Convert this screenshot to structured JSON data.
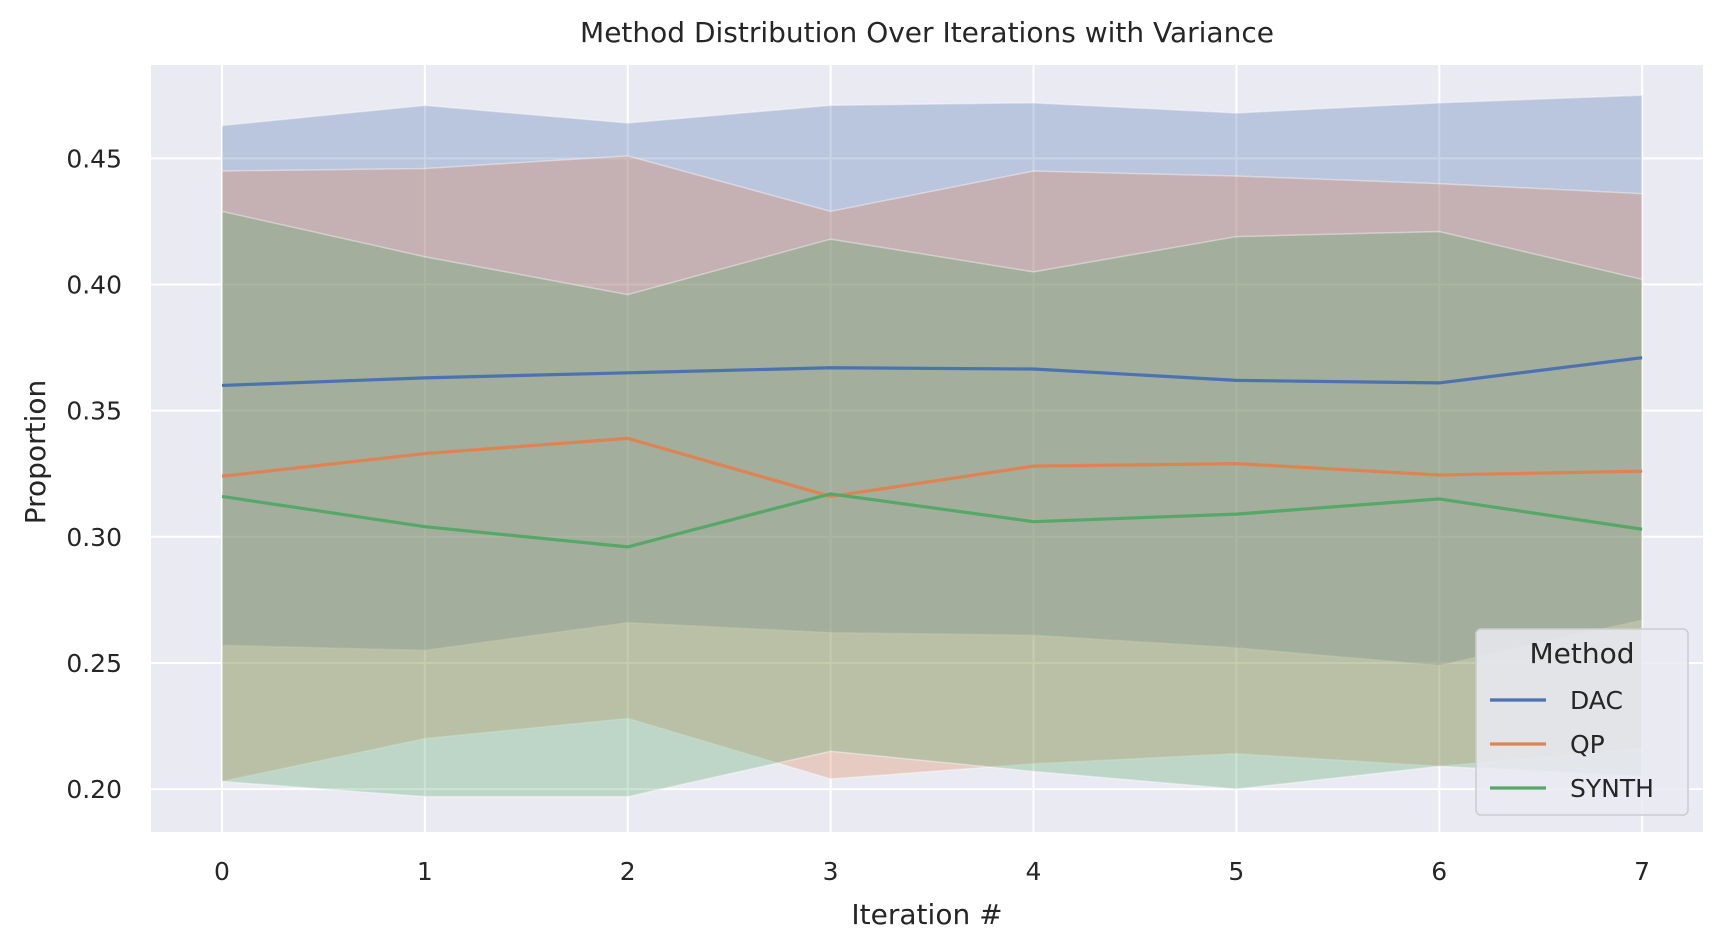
{
  "chart_data": {
    "type": "line",
    "title": "Method Distribution Over Iterations with Variance",
    "xlabel": "Iteration #",
    "ylabel": "Proportion",
    "x": [
      0,
      1,
      2,
      3,
      4,
      5,
      6,
      7
    ],
    "xlim": [
      -0.35,
      7.3
    ],
    "ylim": [
      0.183,
      0.487
    ],
    "yticks": [
      0.2,
      0.25,
      0.3,
      0.35,
      0.4,
      0.45
    ],
    "ytick_labels": [
      "0.20",
      "0.25",
      "0.30",
      "0.35",
      "0.40",
      "0.45"
    ],
    "xtick_labels": [
      "0",
      "1",
      "2",
      "3",
      "4",
      "5",
      "6",
      "7"
    ],
    "grid": true,
    "legend": {
      "title": "Method",
      "placement": "lower-right"
    },
    "series": [
      {
        "name": "DAC",
        "color": "#4c72b0",
        "values": [
          0.36,
          0.363,
          0.365,
          0.367,
          0.3665,
          0.362,
          0.361,
          0.371
        ],
        "upper": [
          0.463,
          0.471,
          0.464,
          0.471,
          0.472,
          0.468,
          0.472,
          0.475
        ],
        "lower": [
          0.257,
          0.255,
          0.266,
          0.262,
          0.261,
          0.256,
          0.249,
          0.267
        ]
      },
      {
        "name": "QP",
        "color": "#dd8452",
        "values": [
          0.324,
          0.333,
          0.339,
          0.316,
          0.328,
          0.329,
          0.3245,
          0.326
        ],
        "upper": [
          0.445,
          0.446,
          0.451,
          0.429,
          0.445,
          0.443,
          0.44,
          0.436
        ],
        "lower": [
          0.203,
          0.22,
          0.228,
          0.204,
          0.21,
          0.214,
          0.209,
          0.216
        ]
      },
      {
        "name": "SYNTH",
        "color": "#55a868",
        "values": [
          0.316,
          0.304,
          0.296,
          0.317,
          0.306,
          0.309,
          0.315,
          0.303
        ],
        "upper": [
          0.429,
          0.411,
          0.396,
          0.418,
          0.405,
          0.419,
          0.421,
          0.402
        ],
        "lower": [
          0.203,
          0.197,
          0.197,
          0.215,
          0.207,
          0.2,
          0.209,
          0.205
        ]
      }
    ]
  }
}
